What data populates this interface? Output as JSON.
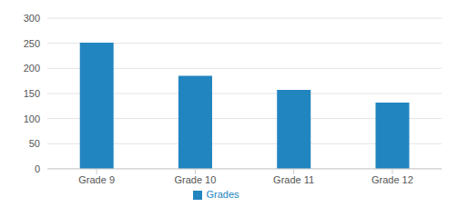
{
  "chart_data": {
    "type": "bar",
    "categories": [
      "Grade 9",
      "Grade 10",
      "Grade 11",
      "Grade 12"
    ],
    "series": [
      {
        "name": "Grades",
        "color": "#2185c0",
        "values": [
          251,
          185,
          157,
          132
        ]
      }
    ],
    "ylim": [
      0,
      300
    ],
    "yticks": [
      0,
      50,
      100,
      150,
      200,
      250,
      300
    ],
    "grid": true,
    "legend": "bottom"
  }
}
